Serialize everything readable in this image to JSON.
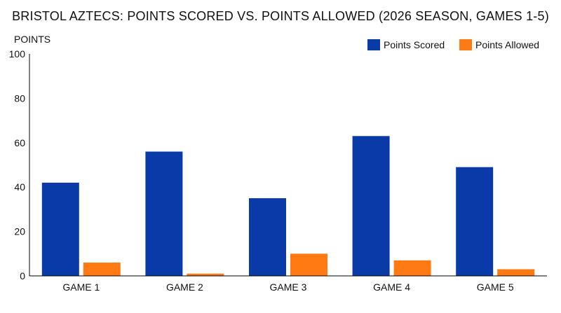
{
  "chart_data": {
    "type": "bar",
    "title": "BRISTOL AZTECS: POINTS SCORED VS. POINTS ALLOWED (2026 SEASON, GAMES 1-5)",
    "xlabel": "",
    "ylabel": "POINTS",
    "ylim": [
      0,
      100
    ],
    "yticks": [
      "0",
      "20",
      "40",
      "60",
      "80",
      "100"
    ],
    "grid": false,
    "legend_position": "top-right",
    "categories": [
      "GAME 1",
      "GAME 2",
      "GAME 3",
      "GAME 4",
      "GAME 5"
    ],
    "series": [
      {
        "name": "Points Scored",
        "color": "#0a3aa8",
        "values": [
          42,
          56,
          35,
          63,
          49
        ]
      },
      {
        "name": "Points Allowed",
        "color": "#ff7a12",
        "values": [
          6,
          1,
          10,
          7,
          3
        ]
      }
    ]
  }
}
